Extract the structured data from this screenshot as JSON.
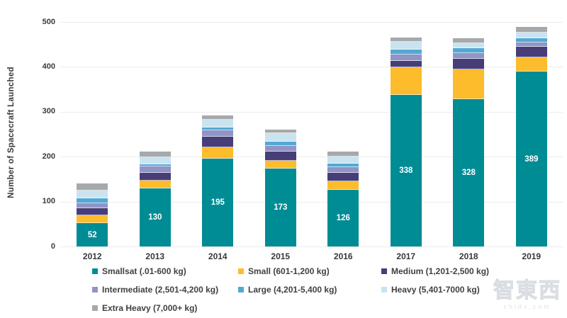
{
  "watermark": {
    "logo": "智東西",
    "domain": "zhidx.com"
  },
  "chart_data": {
    "type": "bar",
    "stacked": true,
    "title": "",
    "xlabel": "",
    "ylabel": "Number of Spacecraft Launched",
    "ylim": [
      0,
      500
    ],
    "yticks": [
      0,
      100,
      200,
      300,
      400,
      500
    ],
    "grid": true,
    "legend_position": "bottom",
    "categories": [
      "2012",
      "2013",
      "2014",
      "2015",
      "2016",
      "2017",
      "2018",
      "2019"
    ],
    "series": [
      {
        "name": "Smallsat (.01-600 kg)",
        "color": "#008C95",
        "labeled": true,
        "values": [
          52,
          130,
          195,
          173,
          126,
          338,
          328,
          389
        ]
      },
      {
        "name": "Small (601-1,200 kg)",
        "color": "#FDBC2C",
        "values": [
          17,
          17,
          26,
          18,
          19,
          62,
          67,
          32
        ]
      },
      {
        "name": "Medium (1,201-2,500 kg)",
        "color": "#473E78",
        "values": [
          15,
          18,
          24,
          21,
          19,
          14,
          24,
          24
        ]
      },
      {
        "name": "Intermediate (2,501-4,200 kg)",
        "color": "#9094C6",
        "values": [
          11,
          14,
          14,
          13,
          13,
          14,
          13,
          9
        ]
      },
      {
        "name": "Large (4,201-5,400 kg)",
        "color": "#55A8D4",
        "values": [
          11,
          5,
          6,
          10,
          8,
          11,
          11,
          9
        ]
      },
      {
        "name": "Heavy (5,401-7000 kg)",
        "color": "#C9E4F0",
        "values": [
          17,
          16,
          17,
          19,
          16,
          17,
          11,
          13
        ]
      },
      {
        "name": "Extra Heavy (7,000+ kg)",
        "color": "#A6A9AB",
        "values": [
          15,
          12,
          10,
          8,
          11,
          10,
          11,
          13
        ]
      }
    ],
    "bar_labels": [
      "52",
      "130",
      "195",
      "173",
      "126",
      "338",
      "328",
      "389"
    ]
  }
}
